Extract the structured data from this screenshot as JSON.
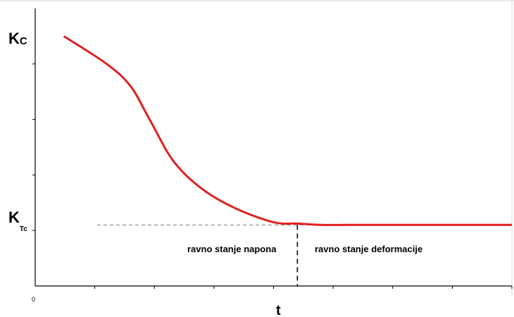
{
  "chart_data": {
    "type": "line",
    "x_label": "t",
    "y_labels": {
      "top": {
        "main": "K",
        "sub": "C"
      },
      "bottom": {
        "main": "K",
        "sub": "Tc"
      }
    },
    "origin_label": "0",
    "x_range": [
      0,
      10
    ],
    "y_range": [
      0,
      1
    ],
    "curve_color": "#e02020",
    "series": [
      {
        "x": [
          0.6,
          1.5,
          2.0,
          2.4,
          2.9,
          3.5,
          4.2,
          5.0,
          5.5,
          6.0,
          6.5,
          7.0,
          8.0,
          9.0,
          10.0
        ],
        "y": [
          0.9,
          0.8,
          0.72,
          0.6,
          0.45,
          0.35,
          0.28,
          0.23,
          0.225,
          0.22,
          0.22,
          0.22,
          0.22,
          0.22,
          0.22
        ]
      }
    ],
    "reference_level": 0.22,
    "transition_x": 5.5,
    "regions": {
      "left": "ravno stanje napona",
      "right": "ravno stanje deformacije"
    }
  }
}
